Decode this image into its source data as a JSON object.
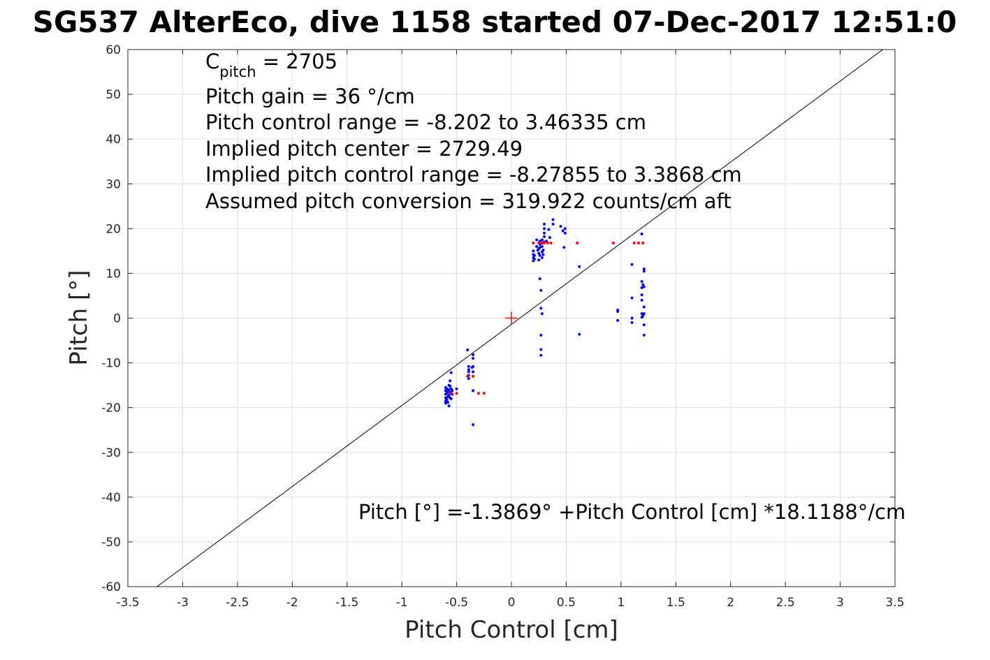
{
  "chart_data": {
    "type": "scatter",
    "title": "SG537 AlterEco, dive 1158 started 07-Dec-2017 12:51:0",
    "xlabel": "Pitch Control [cm]",
    "ylabel": "Pitch [°]",
    "xlim": [
      -3.5,
      3.5
    ],
    "ylim": [
      -60,
      60
    ],
    "xticks": [
      "-3.5",
      "-3",
      "-2.5",
      "-2",
      "-1.5",
      "-1",
      "-0.5",
      "0",
      "0.5",
      "1",
      "1.5",
      "2",
      "2.5",
      "3",
      "3.5"
    ],
    "yticks": [
      "-60",
      "-50",
      "-40",
      "-30",
      "-20",
      "-10",
      "0",
      "10",
      "20",
      "30",
      "40",
      "50",
      "60"
    ],
    "grid": true,
    "annotations": {
      "cpitch_base": "C",
      "cpitch_sub": "pitch",
      "cpitch_value": " = 2705",
      "lines": [
        "Pitch gain = 36 °/cm",
        "Pitch control range = -8.202 to 3.46335 cm",
        "Implied pitch center = 2729.49",
        "Implied pitch control range = -8.27855 to 3.3868 cm",
        "Assumed pitch conversion = 319.922 counts/cm aft"
      ],
      "fit_equation": "Pitch [°] =-1.3869° +Pitch Control [cm] *18.1188°/cm"
    },
    "fit_line": {
      "intercept": -1.3869,
      "slope": 18.1188,
      "color": "#000000"
    },
    "center_marker": {
      "x": 0,
      "y": 0,
      "color": "#ff0000"
    },
    "series": [
      {
        "color": "#0000ff",
        "points": [
          [
            -0.6,
            -15.5
          ],
          [
            -0.6,
            -16.2
          ],
          [
            -0.6,
            -17.0
          ],
          [
            -0.6,
            -17.8
          ],
          [
            -0.6,
            -18.5
          ],
          [
            -0.6,
            -19.0
          ],
          [
            -0.59,
            -15.8
          ],
          [
            -0.59,
            -16.8
          ],
          [
            -0.59,
            -18.2
          ],
          [
            -0.58,
            -16.4
          ],
          [
            -0.58,
            -17.6
          ],
          [
            -0.58,
            -18.8
          ],
          [
            -0.57,
            -15.0
          ],
          [
            -0.57,
            -16.0
          ],
          [
            -0.57,
            -17.2
          ],
          [
            -0.57,
            -19.6
          ],
          [
            -0.56,
            -14.0
          ],
          [
            -0.56,
            -15.2
          ],
          [
            -0.56,
            -16.6
          ],
          [
            -0.56,
            -17.8
          ],
          [
            -0.55,
            -12.2
          ],
          [
            -0.55,
            -15.8
          ],
          [
            -0.55,
            -16.8
          ],
          [
            -0.55,
            -18.0
          ],
          [
            -0.54,
            -16.2
          ],
          [
            -0.54,
            -17.0
          ],
          [
            -0.5,
            -15.8
          ],
          [
            -0.4,
            -7.1
          ],
          [
            -0.39,
            -10.8
          ],
          [
            -0.39,
            -11.5
          ],
          [
            -0.39,
            -12.0
          ],
          [
            -0.39,
            -12.8
          ],
          [
            -0.39,
            -13.5
          ],
          [
            -0.36,
            -11.0
          ],
          [
            -0.35,
            -8.2
          ],
          [
            -0.35,
            -9.0
          ],
          [
            -0.35,
            -10.8
          ],
          [
            -0.35,
            -12.0
          ],
          [
            -0.35,
            -16.2
          ],
          [
            -0.35,
            -23.8
          ],
          [
            0.2,
            12.8
          ],
          [
            0.2,
            13.5
          ],
          [
            0.2,
            14.2
          ],
          [
            0.2,
            15.0
          ],
          [
            0.21,
            13.2
          ],
          [
            0.21,
            14.0
          ],
          [
            0.23,
            16.0
          ],
          [
            0.23,
            17.5
          ],
          [
            0.24,
            15.2
          ],
          [
            0.25,
            14.5
          ],
          [
            0.25,
            15.5
          ],
          [
            0.25,
            13.0
          ],
          [
            0.26,
            15.8
          ],
          [
            0.26,
            16.5
          ],
          [
            0.26,
            17.2
          ],
          [
            0.26,
            14.0
          ],
          [
            0.26,
            8.8
          ],
          [
            0.27,
            2.2
          ],
          [
            0.27,
            6.2
          ],
          [
            0.27,
            -7.0
          ],
          [
            0.27,
            -8.3
          ],
          [
            0.27,
            -3.8
          ],
          [
            0.28,
            1.0
          ],
          [
            0.28,
            13.5
          ],
          [
            0.28,
            14.8
          ],
          [
            0.28,
            16.0
          ],
          [
            0.28,
            16.8
          ],
          [
            0.28,
            17.5
          ],
          [
            0.29,
            14.2
          ],
          [
            0.29,
            15.2
          ],
          [
            0.3,
            17.0
          ],
          [
            0.3,
            18.2
          ],
          [
            0.3,
            19.0
          ],
          [
            0.3,
            20.0
          ],
          [
            0.3,
            21.0
          ],
          [
            0.32,
            17.2
          ],
          [
            0.34,
            19.8
          ],
          [
            0.35,
            18.0
          ],
          [
            0.38,
            21.0
          ],
          [
            0.38,
            22.0
          ],
          [
            0.45,
            20.5
          ],
          [
            0.47,
            19.5
          ],
          [
            0.48,
            15.8
          ],
          [
            0.49,
            19.0
          ],
          [
            0.49,
            20.0
          ],
          [
            0.62,
            11.5
          ],
          [
            0.62,
            -3.6
          ],
          [
            0.97,
            1.8
          ],
          [
            0.97,
            1.5
          ],
          [
            0.97,
            -0.5
          ],
          [
            1.1,
            12.0
          ],
          [
            1.1,
            4.5
          ],
          [
            1.1,
            0.0
          ],
          [
            1.1,
            -1.0
          ],
          [
            1.19,
            18.8
          ],
          [
            1.19,
            8.2
          ],
          [
            1.19,
            6.8
          ],
          [
            1.19,
            5.2
          ],
          [
            1.19,
            4.0
          ],
          [
            1.19,
            1.0
          ],
          [
            1.19,
            0.2
          ],
          [
            1.2,
            7.5
          ],
          [
            1.2,
            0.5
          ],
          [
            1.21,
            11.0
          ],
          [
            1.21,
            10.5
          ],
          [
            1.21,
            7.0
          ],
          [
            1.21,
            2.5
          ],
          [
            1.21,
            1.0
          ],
          [
            1.21,
            -1.5
          ],
          [
            1.21,
            -3.8
          ]
        ]
      },
      {
        "color": "#ff0000",
        "points": [
          [
            -0.55,
            -16.8
          ],
          [
            -0.5,
            -16.8
          ],
          [
            -0.4,
            -13.0
          ],
          [
            -0.35,
            -13.0
          ],
          [
            -0.3,
            -16.8
          ],
          [
            -0.25,
            -16.8
          ],
          [
            0.2,
            16.8
          ],
          [
            0.25,
            16.8
          ],
          [
            0.28,
            16.8
          ],
          [
            0.3,
            16.8
          ],
          [
            0.33,
            16.8
          ],
          [
            0.36,
            16.8
          ],
          [
            0.6,
            16.8
          ],
          [
            0.93,
            16.8
          ],
          [
            1.12,
            16.8
          ],
          [
            1.16,
            16.8
          ],
          [
            1.2,
            16.8
          ]
        ]
      }
    ]
  }
}
